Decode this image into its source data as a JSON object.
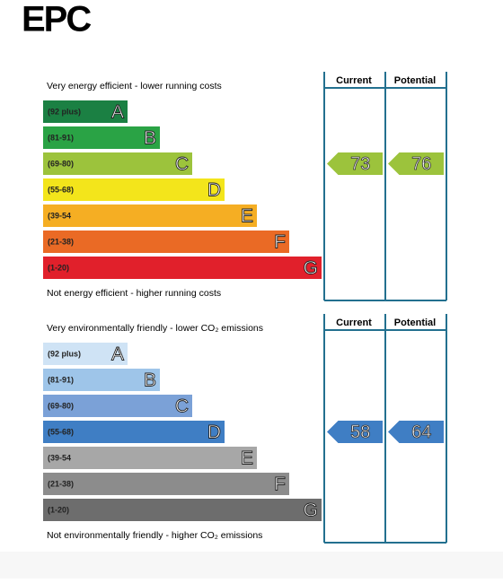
{
  "header": {
    "title": "EPC"
  },
  "panels": [
    {
      "top_text": "Very energy efficient - lower running costs",
      "bottom_text": "Not energy efficient - higher running costs",
      "columns": [
        "Current",
        "Potential"
      ],
      "bands": [
        {
          "range": "(92 plus)",
          "letter": "A",
          "color": "#1b8043"
        },
        {
          "range": "(81-91)",
          "letter": "B",
          "color": "#2aa345"
        },
        {
          "range": "(69-80)",
          "letter": "C",
          "color": "#9cc33c"
        },
        {
          "range": "(55-68)",
          "letter": "D",
          "color": "#f3e51b"
        },
        {
          "range": "(39-54",
          "letter": "E",
          "color": "#f5ae23"
        },
        {
          "range": "(21-38)",
          "letter": "F",
          "color": "#ea6a25"
        },
        {
          "range": "(1-20)",
          "letter": "G",
          "color": "#e1202b"
        }
      ],
      "current": 73,
      "potential": 76
    },
    {
      "top_text": "Very environmentally friendly - lower CO₂ emissions",
      "bottom_text": "Not environmentally friendly - higher CO₂ emissions",
      "columns": [
        "Current",
        "Potential"
      ],
      "bands": [
        {
          "range": "(92 plus)",
          "letter": "A",
          "color": "#cfe3f5"
        },
        {
          "range": "(81-91)",
          "letter": "B",
          "color": "#9ec5e9"
        },
        {
          "range": "(69-80)",
          "letter": "C",
          "color": "#7ba1d7"
        },
        {
          "range": "(55-68)",
          "letter": "D",
          "color": "#3f7ec4"
        },
        {
          "range": "(39-54",
          "letter": "E",
          "color": "#a7a7a7"
        },
        {
          "range": "(21-38)",
          "letter": "F",
          "color": "#8c8c8c"
        },
        {
          "range": "(1-20)",
          "letter": "G",
          "color": "#6d6d6d"
        }
      ],
      "current": 58,
      "potential": 64
    }
  ]
}
